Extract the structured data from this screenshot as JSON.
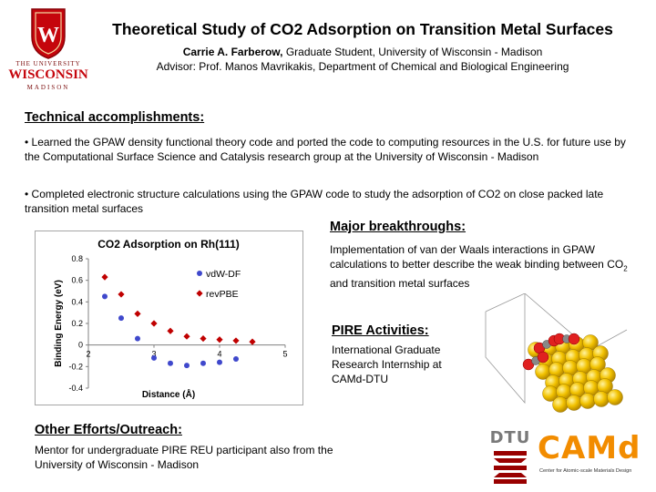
{
  "header": {
    "title": "Theoretical Study of CO2 Adsorption on Transition Metal Surfaces",
    "author_name": "Carrie A. Farberow,",
    "author_role": " Graduate Student, University of Wisconsin - Madison",
    "advisor": "Advisor: Prof. Manos Mavrikakis, Department of Chemical and Biological Engineering"
  },
  "logos": {
    "uw_line1": "THE UNIVERSITY",
    "uw_line2": "OF",
    "uw_line3": "WISCONSIN",
    "uw_line4": "MADISON",
    "dtu": "DTU",
    "camd_main": "CAMd",
    "camd_sub": "Center for Atomic-scale Materials Design"
  },
  "technical": {
    "heading": "Technical accomplishments:",
    "bullet1": "• Learned the GPAW density functional theory code and ported the code to computing resources in the U.S. for future use by the Computational Surface Science and Catalysis research group at the University of Wisconsin - Madison",
    "bullet2": "• Completed electronic structure calculations using the GPAW code to study the adsorption of CO2 on close packed late transition metal surfaces"
  },
  "major": {
    "heading": "Major breakthroughs:",
    "text_part1": "Implementation of van der Waals interactions in GPAW calculations to better describe the weak binding between CO",
    "text_sub": "2",
    "text_part2": " and transition metal surfaces"
  },
  "pire": {
    "heading": "PIRE Activities:",
    "text": "International Graduate Research Internship at CAMd-DTU"
  },
  "other": {
    "heading": "Other Efforts/Outreach:",
    "text": "Mentor for undergraduate PIRE REU participant also from the University of Wisconsin - Madison"
  },
  "chart_data": {
    "type": "scatter",
    "title": "CO2 Adsorption on Rh(111)",
    "xlabel": "Distance (Å)",
    "ylabel": "Binding Energy (eV)",
    "xlim": [
      2,
      5
    ],
    "ylim": [
      -0.4,
      0.8
    ],
    "x_ticks": [
      "2",
      "3",
      "4",
      "5"
    ],
    "y_ticks": [
      "-0.4",
      "-0.2",
      "0",
      "0.2",
      "0.4",
      "0.6",
      "0.8"
    ],
    "legend_position": "top-right",
    "series": [
      {
        "name": "vdW-DF",
        "color": "#3f48cc",
        "marker": "circle",
        "x": [
          2.25,
          2.5,
          2.75,
          3.0,
          3.25,
          3.5,
          3.75,
          4.0,
          4.25
        ],
        "y": [
          0.45,
          0.25,
          0.06,
          -0.12,
          -0.17,
          -0.19,
          -0.17,
          -0.16,
          -0.13
        ]
      },
      {
        "name": "revPBE",
        "color": "#c00000",
        "marker": "diamond",
        "x": [
          2.25,
          2.5,
          2.75,
          3.0,
          3.25,
          3.5,
          3.75,
          4.0,
          4.25,
          4.5
        ],
        "y": [
          0.63,
          0.47,
          0.29,
          0.2,
          0.13,
          0.08,
          0.06,
          0.05,
          0.04,
          0.03
        ]
      }
    ]
  }
}
